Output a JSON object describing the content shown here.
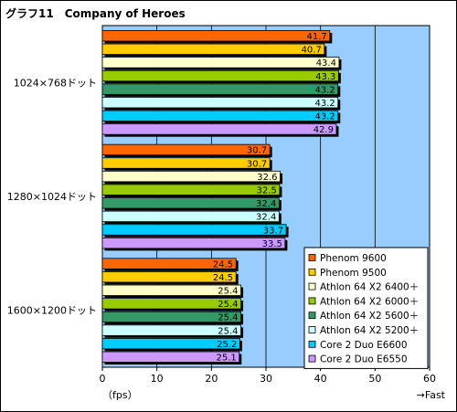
{
  "chart_data": {
    "type": "bar",
    "orientation": "horizontal",
    "title": "グラフ11　Company of Heroes",
    "categories": [
      "1024×768ドット",
      "1280×1024ドット",
      "1600×1200ドット"
    ],
    "xlim": [
      0,
      60
    ],
    "xticks": [
      0,
      10,
      20,
      30,
      40,
      50,
      60
    ],
    "xlabel_left": "（fps）",
    "xlabel_right": "→Fast",
    "grid": true,
    "legend_position": "bottom-right",
    "series": [
      {
        "name": "Phenom 9600",
        "color": "#ff6600",
        "values": [
          41.7,
          30.7,
          24.5
        ]
      },
      {
        "name": "Phenom 9500",
        "color": "#ffcc00",
        "values": [
          40.7,
          30.7,
          24.5
        ]
      },
      {
        "name": "Athlon 64 X2 6400＋",
        "color": "#ffffcc",
        "values": [
          43.4,
          32.6,
          25.4
        ]
      },
      {
        "name": "Athlon 64 X2 6000＋",
        "color": "#99cc00",
        "values": [
          43.3,
          32.5,
          25.4
        ]
      },
      {
        "name": "Athlon 64 X2 5600＋",
        "color": "#339966",
        "values": [
          43.2,
          32.4,
          25.4
        ]
      },
      {
        "name": "Athlon 64 X2 5200＋",
        "color": "#ccffff",
        "values": [
          43.2,
          32.4,
          25.4
        ]
      },
      {
        "name": "Core 2 Duo E6600",
        "color": "#00ccff",
        "values": [
          43.2,
          33.7,
          25.2
        ]
      },
      {
        "name": "Core 2 Duo E6550",
        "color": "#cc99ff",
        "values": [
          42.9,
          33.5,
          25.1
        ]
      }
    ],
    "plot_color": "#99ccff"
  }
}
